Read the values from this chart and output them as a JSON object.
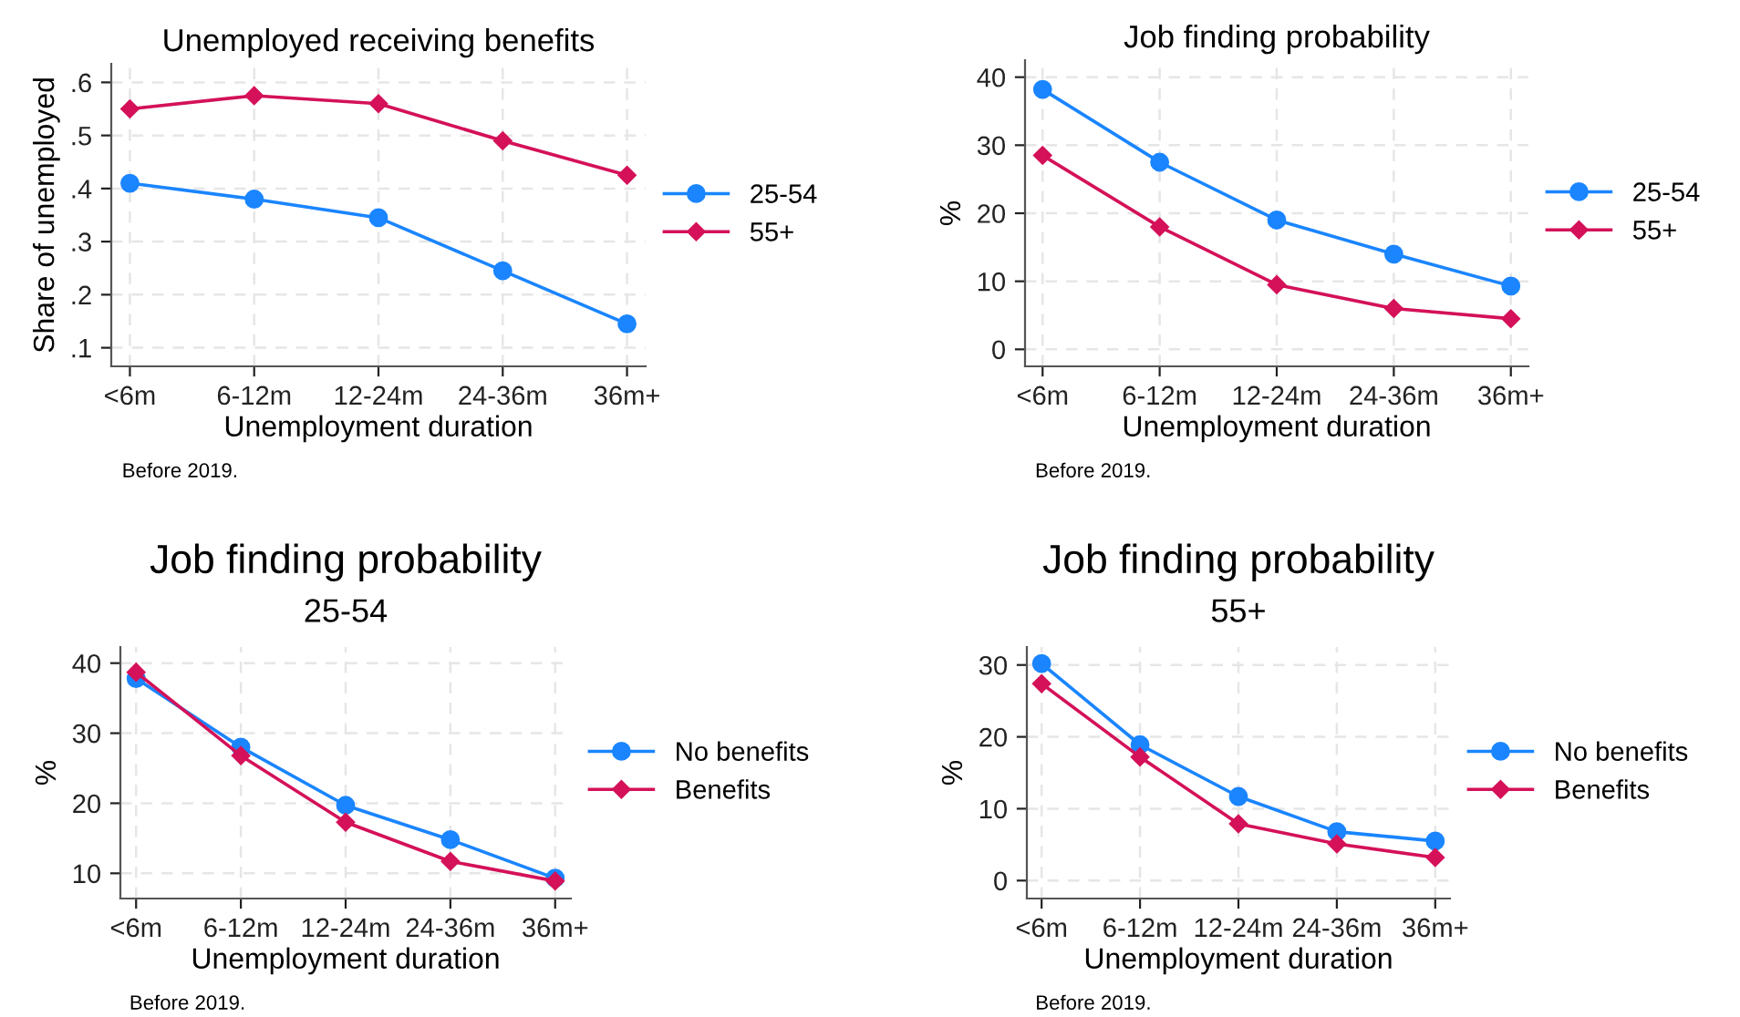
{
  "chart_data": [
    {
      "type": "line",
      "title": "Unemployed receiving benefits",
      "xlabel": "Unemployment duration",
      "ylabel": "Share of unemployed",
      "annotations": [
        "Before 2019."
      ],
      "categories": [
        "<6m",
        "6-12m",
        "12-24m",
        "24-36m",
        "36m+"
      ],
      "series": [
        {
          "name": "25-54",
          "color": "#1a85ff",
          "marker": "circle",
          "values": [
            0.41,
            0.38,
            0.345,
            0.245,
            0.145
          ]
        },
        {
          "name": "55+",
          "color": "#d41159",
          "marker": "diamond",
          "values": [
            0.55,
            0.575,
            0.56,
            0.49,
            0.425
          ]
        }
      ],
      "ylim": [
        0.065,
        0.635
      ],
      "yticks": [
        {
          "value": 0.1,
          "label": ".1"
        },
        {
          "value": 0.2,
          "label": ".2"
        },
        {
          "value": 0.3,
          "label": ".3"
        },
        {
          "value": 0.4,
          "label": ".4"
        },
        {
          "value": 0.5,
          "label": ".5"
        },
        {
          "value": 0.6,
          "label": ".6"
        }
      ],
      "grid": true,
      "legend": "right"
    },
    {
      "type": "line",
      "title": "Job finding probability",
      "xlabel": "Unemployment duration",
      "ylabel": "%",
      "annotations": [
        "Before 2019."
      ],
      "categories": [
        "<6m",
        "6-12m",
        "12-24m",
        "24-36m",
        "36m+"
      ],
      "series": [
        {
          "name": "25-54",
          "color": "#1a85ff",
          "marker": "circle",
          "values": [
            38.2,
            27.5,
            19,
            14,
            9.3
          ]
        },
        {
          "name": "55+",
          "color": "#d41159",
          "marker": "diamond",
          "values": [
            28.5,
            18,
            9.5,
            6,
            4.5
          ]
        }
      ],
      "ylim": [
        -2.5,
        42.5
      ],
      "yticks": [
        0,
        10,
        20,
        30,
        40
      ],
      "grid": true,
      "legend": "right"
    },
    {
      "type": "line",
      "title": "Job finding probability",
      "subtitle": "25-54",
      "xlabel": "Unemployment duration",
      "ylabel": "%",
      "annotations": [
        "Before 2019."
      ],
      "categories": [
        "<6m",
        "6-12m",
        "12-24m",
        "24-36m",
        "36m+"
      ],
      "series": [
        {
          "name": "No benefits",
          "color": "#1a85ff",
          "marker": "circle",
          "values": [
            37.8,
            28,
            19.7,
            14.8,
            9.3
          ]
        },
        {
          "name": "Benefits",
          "color": "#d41159",
          "marker": "diamond",
          "values": [
            38.7,
            26.8,
            17.3,
            11.7,
            8.9
          ]
        }
      ],
      "ylim": [
        6.4,
        42.3
      ],
      "yticks": [
        10,
        20,
        30,
        40
      ],
      "grid": true,
      "legend": "right"
    },
    {
      "type": "line",
      "title": "Job finding probability",
      "subtitle": "55+",
      "xlabel": "Unemployment duration",
      "ylabel": "%",
      "annotations": [
        "Before 2019."
      ],
      "categories": [
        "<6m",
        "6-12m",
        "12-24m",
        "24-36m",
        "36m+"
      ],
      "series": [
        {
          "name": "No benefits",
          "color": "#1a85ff",
          "marker": "circle",
          "values": [
            30.2,
            18.9,
            11.7,
            6.8,
            5.5
          ]
        },
        {
          "name": "Benefits",
          "color": "#d41159",
          "marker": "diamond",
          "values": [
            27.4,
            17.2,
            7.9,
            5.1,
            3.2
          ]
        }
      ],
      "ylim": [
        -2.5,
        32.5
      ],
      "yticks": [
        0,
        10,
        20,
        30
      ],
      "grid": true,
      "legend": "right"
    }
  ]
}
